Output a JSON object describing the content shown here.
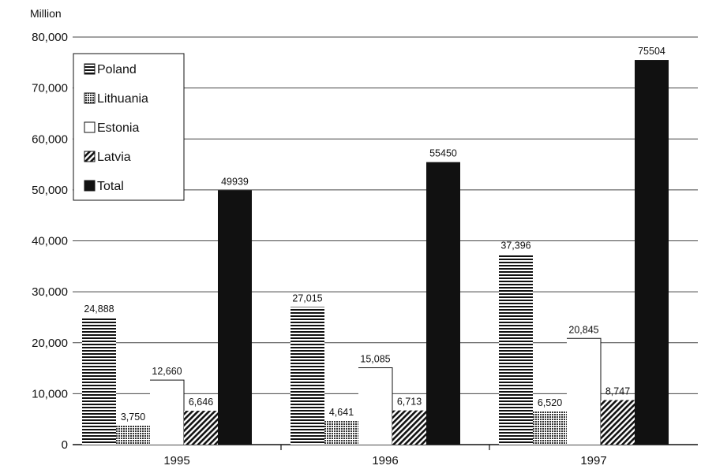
{
  "chart_data": {
    "type": "bar",
    "title": "",
    "xlabel": "",
    "ylabel": "Million",
    "ylim": [
      0,
      80000
    ],
    "yticks": [
      0,
      10000,
      20000,
      30000,
      40000,
      50000,
      60000,
      70000,
      80000
    ],
    "ytick_labels": [
      "0",
      "10,000",
      "20,000",
      "30,000",
      "40,000",
      "50,000",
      "60,000",
      "70,000",
      "80,000"
    ],
    "grid": true,
    "legend_position": "top-left",
    "categories": [
      "1995",
      "1996",
      "1997"
    ],
    "series": [
      {
        "name": "Poland",
        "pattern": "horizontal-lines",
        "color": "#111111",
        "values": [
          24888,
          27015,
          37396
        ],
        "labels": [
          "24,888",
          "27,015",
          "37,396"
        ]
      },
      {
        "name": "Lithuania",
        "pattern": "dots",
        "color": "#111111",
        "values": [
          3750,
          4641,
          6520
        ],
        "labels": [
          "3,750",
          "4,641",
          "6,520"
        ]
      },
      {
        "name": "Estonia",
        "pattern": "blank",
        "color": "#ffffff",
        "values": [
          12660,
          15085,
          20845
        ],
        "labels": [
          "12,660",
          "15,085",
          "20,845"
        ]
      },
      {
        "name": "Latvia",
        "pattern": "diagonal-lines",
        "color": "#111111",
        "values": [
          6646,
          6713,
          8747
        ],
        "labels": [
          "6,646",
          "6,713",
          "8,747"
        ]
      },
      {
        "name": "Total",
        "pattern": "solid",
        "color": "#111111",
        "values": [
          49939,
          55450,
          75504
        ],
        "labels": [
          "49939",
          "55450",
          "75504"
        ]
      }
    ]
  }
}
